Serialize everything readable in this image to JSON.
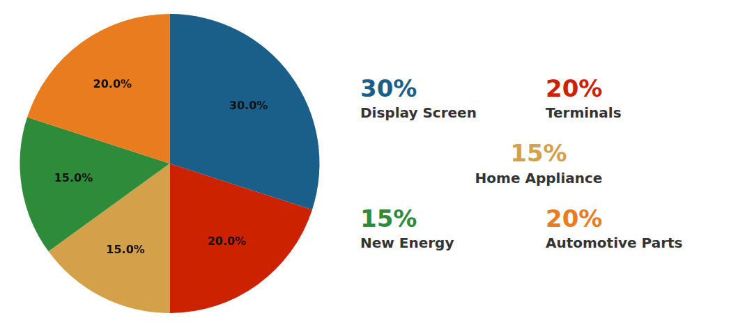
{
  "chart_data": {
    "type": "pie",
    "categories": [
      "Display Screen",
      "Terminals",
      "Home Appliance",
      "New Energy",
      "Automotive Parts"
    ],
    "values": [
      30.0,
      20.0,
      15.0,
      15.0,
      20.0
    ],
    "value_labels": [
      "30.0%",
      "20.0%",
      "15.0%",
      "15.0%",
      "20.0%"
    ],
    "colors": [
      "#1a5f8a",
      "#cc2200",
      "#d4a04a",
      "#2e8b3a",
      "#e87c1e"
    ],
    "data_labels": true,
    "legend": "right",
    "legend_value_labels": [
      "30%",
      "20%",
      "15%",
      "15%",
      "20%"
    ]
  }
}
